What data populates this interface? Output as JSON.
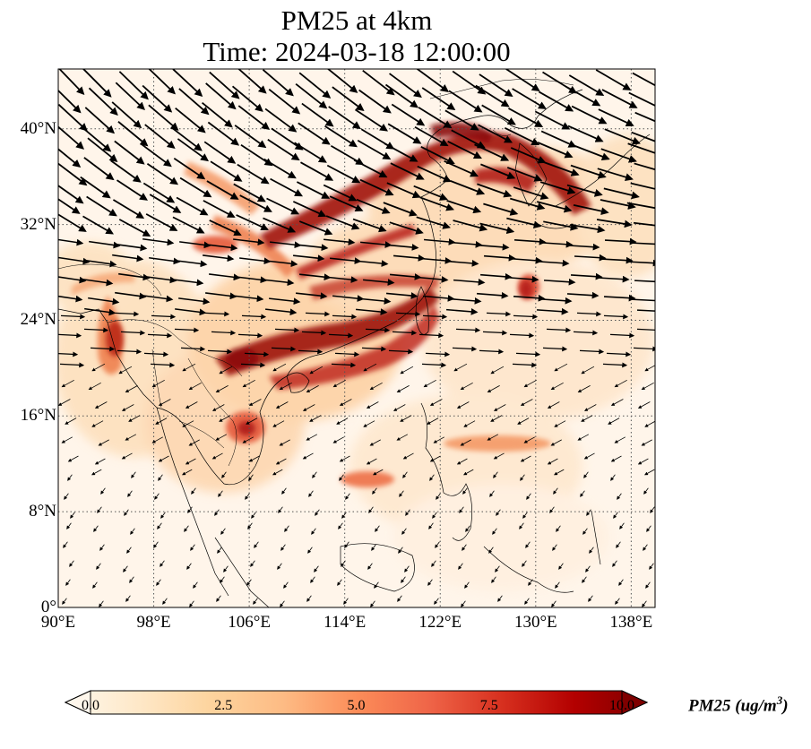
{
  "title_line1": "PM25 at 4km",
  "title_line2": "Time: 2024-03-18 12:00:00",
  "map": {
    "lon_range": [
      90,
      140
    ],
    "lat_range": [
      0,
      45
    ],
    "x_ticks": [
      {
        "lon": 90,
        "label": "90°E"
      },
      {
        "lon": 98,
        "label": "98°E"
      },
      {
        "lon": 106,
        "label": "106°E"
      },
      {
        "lon": 114,
        "label": "114°E"
      },
      {
        "lon": 122,
        "label": "122°E"
      },
      {
        "lon": 130,
        "label": "130°E"
      },
      {
        "lon": 138,
        "label": "138°E"
      }
    ],
    "y_ticks": [
      {
        "lat": 0,
        "label": "0°"
      },
      {
        "lat": 8,
        "label": "8°N"
      },
      {
        "lat": 16,
        "label": "16°N"
      },
      {
        "lat": 24,
        "label": "24°N"
      },
      {
        "lat": 32,
        "label": "32°N"
      },
      {
        "lat": 40,
        "label": "40°N"
      }
    ],
    "gridlines": "dotted"
  },
  "colorbar": {
    "ticks": [
      "0.0",
      "2.5",
      "5.0",
      "7.5",
      "10.0"
    ],
    "label": "PM25 (ug/m3)",
    "label_main": "PM25 (ug/m",
    "label_sup": "3",
    "label_end": ")",
    "colormap": "OrRd",
    "colors": [
      "#fff7ec",
      "#fee8c8",
      "#fdd49e",
      "#fdbb84",
      "#fc8d59",
      "#ef6548",
      "#d7301f",
      "#b30000",
      "#7f0000"
    ]
  }
}
